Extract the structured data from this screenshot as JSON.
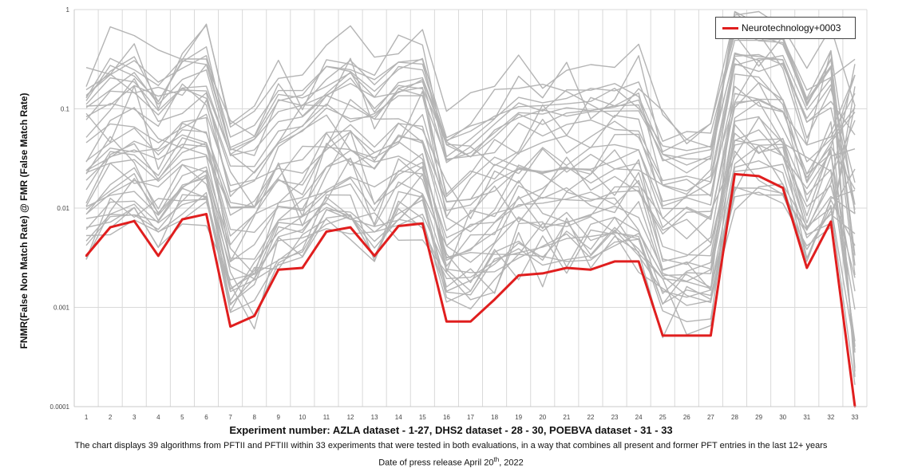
{
  "chart_data": {
    "type": "line",
    "title": "",
    "xlabel": "Experiment number: AZLA dataset - 1-27, DHS2 dataset - 28 - 30, POEBVA dataset - 31 - 33",
    "ylabel": "FNMR(False Non Match Rate) @ FMR (False Match Rate)",
    "yscale": "log",
    "ylim": [
      0.0001,
      1
    ],
    "y_ticks": [
      "0.0001",
      "0.001",
      "0.01",
      "0.1",
      "1"
    ],
    "categories": [
      "1",
      "2",
      "3",
      "4",
      "5",
      "6",
      "7",
      "8",
      "9",
      "10",
      "11",
      "12",
      "13",
      "14",
      "15",
      "16",
      "17",
      "18",
      "19",
      "20",
      "21",
      "22",
      "23",
      "24",
      "25",
      "26",
      "27",
      "28",
      "29",
      "30",
      "31",
      "32",
      "33"
    ],
    "highlight_series": {
      "name": "Neurotechnology+0003",
      "color": "#e01e1e",
      "values": [
        0.0033,
        0.0064,
        0.0074,
        0.0033,
        0.0077,
        0.0087,
        0.00064,
        0.00082,
        0.0024,
        0.0025,
        0.0058,
        0.0064,
        0.0033,
        0.0066,
        0.007,
        0.00072,
        0.00072,
        0.0012,
        0.0021,
        0.0022,
        0.0025,
        0.0024,
        0.0029,
        0.0029,
        0.00052,
        0.00052,
        0.00052,
        0.022,
        0.021,
        0.016,
        0.0025,
        0.0073,
        0.0001
      ]
    },
    "other_series_color": "#b4b4b4",
    "other_series_count": 38,
    "legend": {
      "entries": [
        "Neurotechnology+0003"
      ],
      "position": "top-right"
    }
  },
  "caption": {
    "line1": "The chart displays 39 algorithms from PFTII and PFTIII within 33 experiments that were tested in both evaluations, in a way that combines all present and former PFT entries in the last 12+ years",
    "line2_prefix": "Date of press release April 20",
    "line2_sup": "th",
    "line2_suffix": ", 2022"
  }
}
